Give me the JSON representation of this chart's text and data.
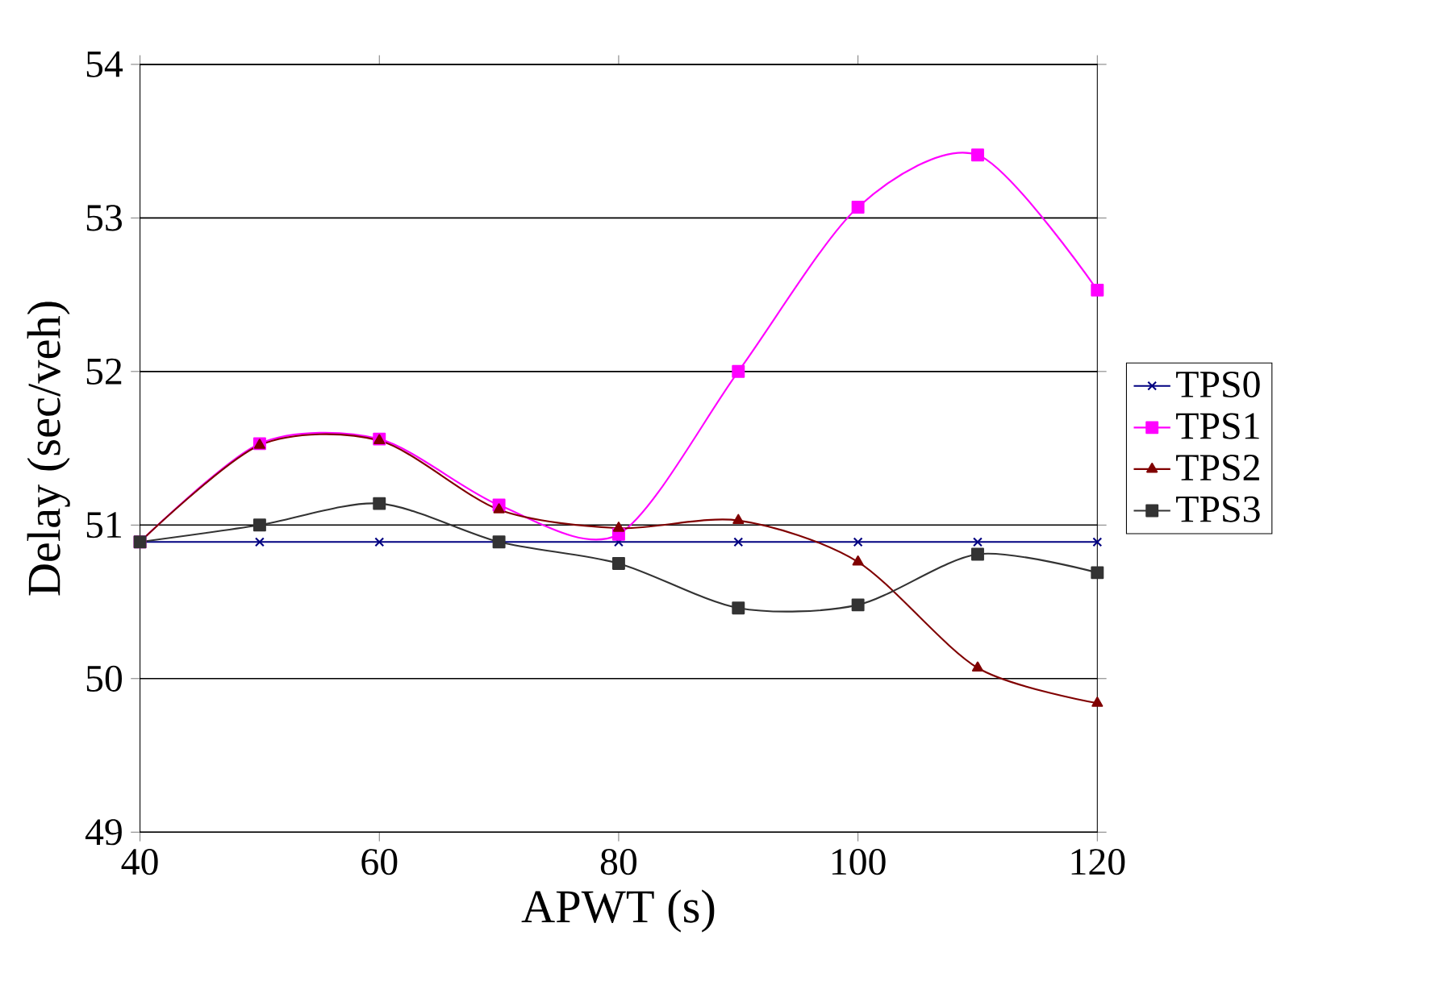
{
  "chart_data": {
    "type": "line",
    "xlabel": "APWT (s)",
    "ylabel": "Delay (sec/veh)",
    "x": [
      40,
      50,
      60,
      70,
      80,
      90,
      100,
      110,
      120
    ],
    "xlim": [
      40,
      120
    ],
    "xticks": [
      40,
      60,
      80,
      100,
      120
    ],
    "ylim": [
      49,
      54
    ],
    "yticks": [
      49,
      50,
      51,
      52,
      53,
      54
    ],
    "grid": "y",
    "legend": "right",
    "line_style": "solid",
    "series": [
      {
        "name": "TPS0",
        "color": "#000080",
        "marker": "cross",
        "values": [
          50.89,
          50.89,
          50.89,
          50.89,
          50.89,
          50.89,
          50.89,
          50.89,
          50.89
        ]
      },
      {
        "name": "TPS1",
        "color": "#ff00ff",
        "marker": "square",
        "values": [
          50.89,
          51.53,
          51.56,
          51.13,
          50.94,
          52.0,
          53.07,
          53.41,
          52.53
        ]
      },
      {
        "name": "TPS2",
        "color": "#800000",
        "marker": "triangle",
        "values": [
          50.89,
          51.52,
          51.55,
          51.1,
          50.98,
          51.03,
          50.76,
          50.07,
          49.84
        ]
      },
      {
        "name": "TPS3",
        "color": "#333333",
        "marker": "square",
        "values": [
          50.89,
          51.0,
          51.14,
          50.89,
          50.75,
          50.46,
          50.48,
          50.81,
          50.69
        ]
      }
    ]
  }
}
